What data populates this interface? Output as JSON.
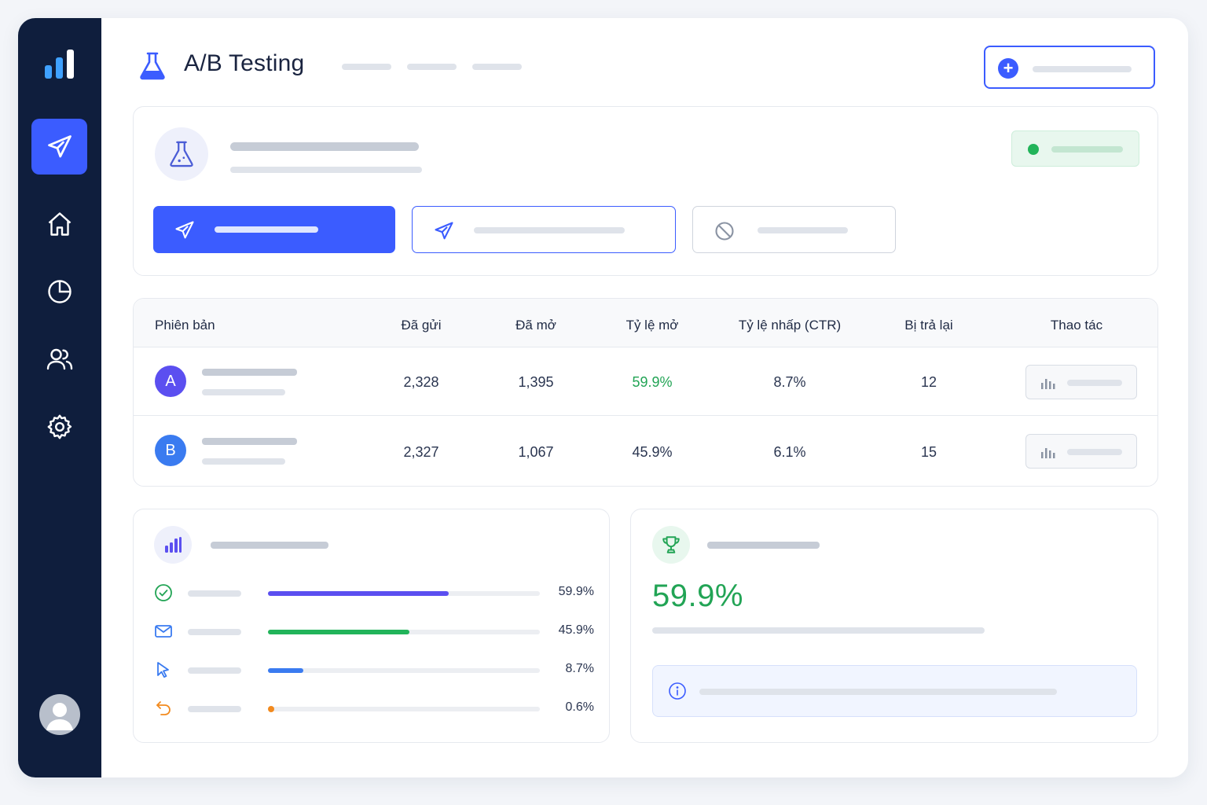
{
  "app": {
    "title": "A/B Testing"
  },
  "sidebar": {
    "items": [
      {
        "name": "campaigns",
        "icon": "send-icon",
        "active": true
      },
      {
        "name": "home",
        "icon": "home-icon",
        "active": false
      },
      {
        "name": "reports",
        "icon": "pie-chart-icon",
        "active": false
      },
      {
        "name": "contacts",
        "icon": "users-icon",
        "active": false
      },
      {
        "name": "settings",
        "icon": "gear-icon",
        "active": false
      }
    ]
  },
  "table": {
    "headers": [
      "Phiên bản",
      "Đã gửi",
      "Đã mở",
      "Tỷ lệ mở",
      "Tỷ lệ nhấp (CTR)",
      "Bị trả lại",
      "Thao tác"
    ],
    "rows": [
      {
        "badge": "A",
        "badge_color": "#5b4ff0",
        "sent": "2,328",
        "opened": "1,395",
        "open_rate": "59.9%",
        "open_rate_color": "#22a455",
        "ctr": "8.7%",
        "bounced": "12"
      },
      {
        "badge": "B",
        "badge_color": "#3a7bf0",
        "sent": "2,327",
        "opened": "1,067",
        "open_rate": "45.9%",
        "open_rate_color": "#2a3550",
        "ctr": "6.1%",
        "bounced": "15"
      }
    ]
  },
  "metrics": [
    {
      "icon": "check-circle-icon",
      "value": "59.9%",
      "level": 0.665,
      "color": "#5b4ff0"
    },
    {
      "icon": "mail-icon",
      "value": "45.9%",
      "level": 0.52,
      "color": "#22b45a"
    },
    {
      "icon": "cursor-icon",
      "value": "8.7%",
      "level": 0.13,
      "color": "#3a7bf0"
    },
    {
      "icon": "undo-icon",
      "value": "0.6%",
      "level": 0.02,
      "color": "#f28a1e"
    }
  ],
  "winner": {
    "icon": "trophy-icon",
    "value": "59.9%"
  },
  "colors": {
    "accent": "#3b5cff",
    "sidebar": "#0f1e3d",
    "success": "#22a455"
  }
}
